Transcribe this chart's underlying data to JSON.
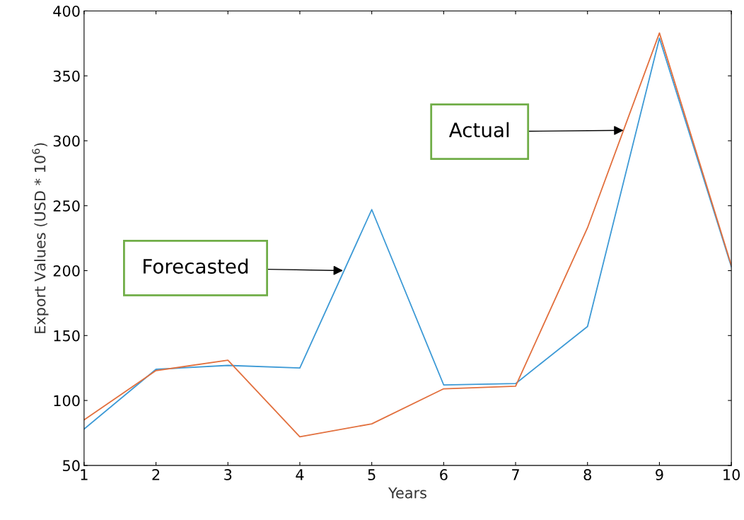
{
  "chart_data": {
    "type": "line",
    "xlabel": "Years",
    "ylabel": "Export Values (USD * 10$^{6}$)",
    "x": [
      1,
      2,
      3,
      4,
      5,
      6,
      7,
      8,
      9,
      10
    ],
    "series": [
      {
        "color": "#3d9ad6",
        "values": [
          78,
          124,
          127,
          125,
          247,
          112,
          113,
          157,
          379,
          203
        ]
      },
      {
        "color": "#e2703e",
        "values": [
          85,
          123,
          131,
          72,
          82,
          109,
          111,
          233,
          383,
          204
        ]
      }
    ],
    "xlim": [
      1,
      10
    ],
    "xticks": [
      1,
      2,
      3,
      4,
      5,
      6,
      7,
      8,
      9,
      10
    ],
    "ylim": [
      50,
      400
    ],
    "yticks": [
      50,
      100,
      150,
      200,
      250,
      300,
      350,
      400
    ],
    "grid": false,
    "legend": false,
    "annotations": [
      {
        "text": "Forecasted",
        "x": 4.6,
        "y": 200
      },
      {
        "text": "Actual",
        "x": 8.5,
        "y": 308
      }
    ]
  }
}
